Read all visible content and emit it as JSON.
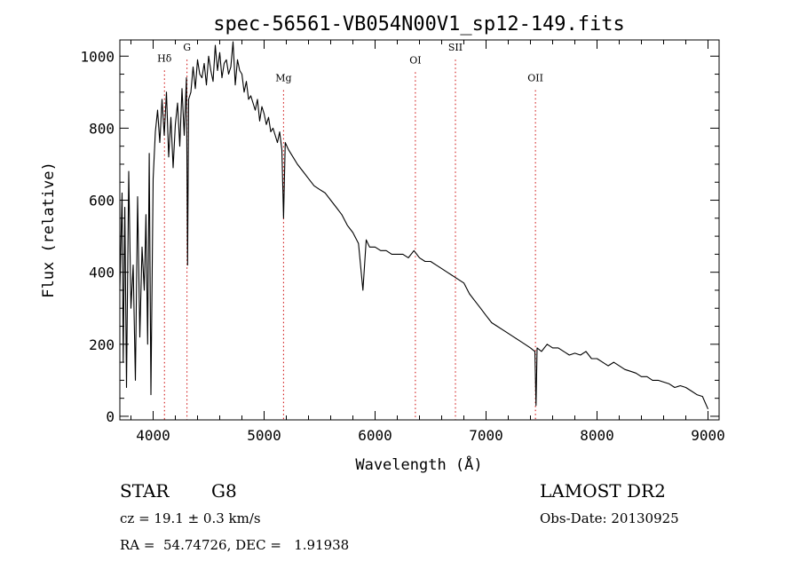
{
  "chart_data": {
    "type": "line",
    "title": "spec-56561-VB054N00V1_sp12-149.fits",
    "xlabel": "Wavelength (Å)",
    "ylabel": "Flux (relative)",
    "xlim": [
      3700,
      9100
    ],
    "ylim": [
      -10,
      1045
    ],
    "xticks": [
      4000,
      5000,
      6000,
      7000,
      8000,
      9000
    ],
    "yticks": [
      0,
      200,
      400,
      600,
      800,
      1000
    ],
    "grid": false,
    "line_color": "#000000",
    "marker_color": "#cc0000",
    "spectral_lines": [
      {
        "label": "Hδ",
        "x": 4102,
        "label_y": 980
      },
      {
        "label": "G",
        "x": 4305,
        "label_y": 1010
      },
      {
        "label": "Mg",
        "x": 5175,
        "label_y": 925
      },
      {
        "label": "OI",
        "x": 6363,
        "label_y": 975
      },
      {
        "label": "SII",
        "x": 6724,
        "label_y": 1010
      },
      {
        "label": "OII",
        "x": 7445,
        "label_y": 925
      }
    ],
    "series": [
      {
        "x": [
          3700,
          3720,
          3730,
          3745,
          3760,
          3780,
          3800,
          3820,
          3840,
          3860,
          3880,
          3900,
          3920,
          3935,
          3950,
          3965,
          3980,
          4000,
          4020,
          4040,
          4060,
          4080,
          4100,
          4120,
          4140,
          4160,
          4180,
          4200,
          4220,
          4240,
          4260,
          4280,
          4300,
          4310,
          4320,
          4340,
          4360,
          4380,
          4400,
          4420,
          4440,
          4460,
          4480,
          4500,
          4520,
          4540,
          4560,
          4580,
          4600,
          4620,
          4640,
          4660,
          4680,
          4700,
          4720,
          4740,
          4760,
          4780,
          4800,
          4820,
          4840,
          4860,
          4880,
          4900,
          4920,
          4940,
          4960,
          4980,
          5000,
          5020,
          5040,
          5060,
          5080,
          5100,
          5120,
          5140,
          5160,
          5175,
          5190,
          5220,
          5260,
          5300,
          5350,
          5400,
          5450,
          5500,
          5550,
          5600,
          5650,
          5700,
          5750,
          5800,
          5850,
          5890,
          5920,
          5950,
          6000,
          6050,
          6100,
          6150,
          6200,
          6250,
          6300,
          6350,
          6400,
          6450,
          6500,
          6550,
          6600,
          6650,
          6700,
          6750,
          6800,
          6850,
          6900,
          6950,
          7000,
          7050,
          7100,
          7150,
          7200,
          7250,
          7300,
          7350,
          7400,
          7440,
          7450,
          7460,
          7500,
          7550,
          7600,
          7650,
          7700,
          7750,
          7800,
          7850,
          7900,
          7950,
          8000,
          8050,
          8100,
          8150,
          8200,
          8250,
          8300,
          8350,
          8400,
          8450,
          8500,
          8550,
          8600,
          8650,
          8700,
          8750,
          8800,
          8850,
          8900,
          8950,
          9000
        ],
        "y": [
          350,
          620,
          150,
          580,
          80,
          680,
          300,
          420,
          100,
          610,
          220,
          470,
          350,
          560,
          200,
          730,
          60,
          660,
          790,
          850,
          760,
          880,
          780,
          900,
          720,
          830,
          690,
          810,
          870,
          750,
          910,
          780,
          940,
          420,
          880,
          900,
          970,
          910,
          990,
          950,
          940,
          980,
          920,
          1000,
          960,
          930,
          1030,
          960,
          1010,
          940,
          980,
          990,
          950,
          970,
          1040,
          920,
          990,
          960,
          950,
          900,
          930,
          880,
          890,
          870,
          850,
          880,
          820,
          860,
          840,
          810,
          830,
          790,
          800,
          780,
          760,
          790,
          740,
          550,
          760,
          740,
          720,
          700,
          680,
          660,
          640,
          630,
          620,
          600,
          580,
          560,
          530,
          510,
          480,
          350,
          490,
          470,
          470,
          460,
          460,
          450,
          450,
          450,
          440,
          460,
          440,
          430,
          430,
          420,
          410,
          400,
          390,
          380,
          370,
          340,
          320,
          300,
          280,
          260,
          250,
          240,
          230,
          220,
          210,
          200,
          190,
          180,
          30,
          190,
          180,
          200,
          190,
          190,
          180,
          170,
          175,
          170,
          180,
          160,
          160,
          150,
          140,
          150,
          140,
          130,
          125,
          120,
          110,
          110,
          100,
          100,
          95,
          90,
          80,
          85,
          80,
          70,
          60,
          55,
          20
        ]
      }
    ]
  },
  "info": {
    "object_class": "STAR",
    "subclass": "G8",
    "survey": "LAMOST DR2",
    "redshift": "cz = 19.1 ± 0.3 km/s",
    "obs_date": "Obs-Date: 20130925",
    "coords": "RA =  54.74726, DEC =   1.91938"
  }
}
